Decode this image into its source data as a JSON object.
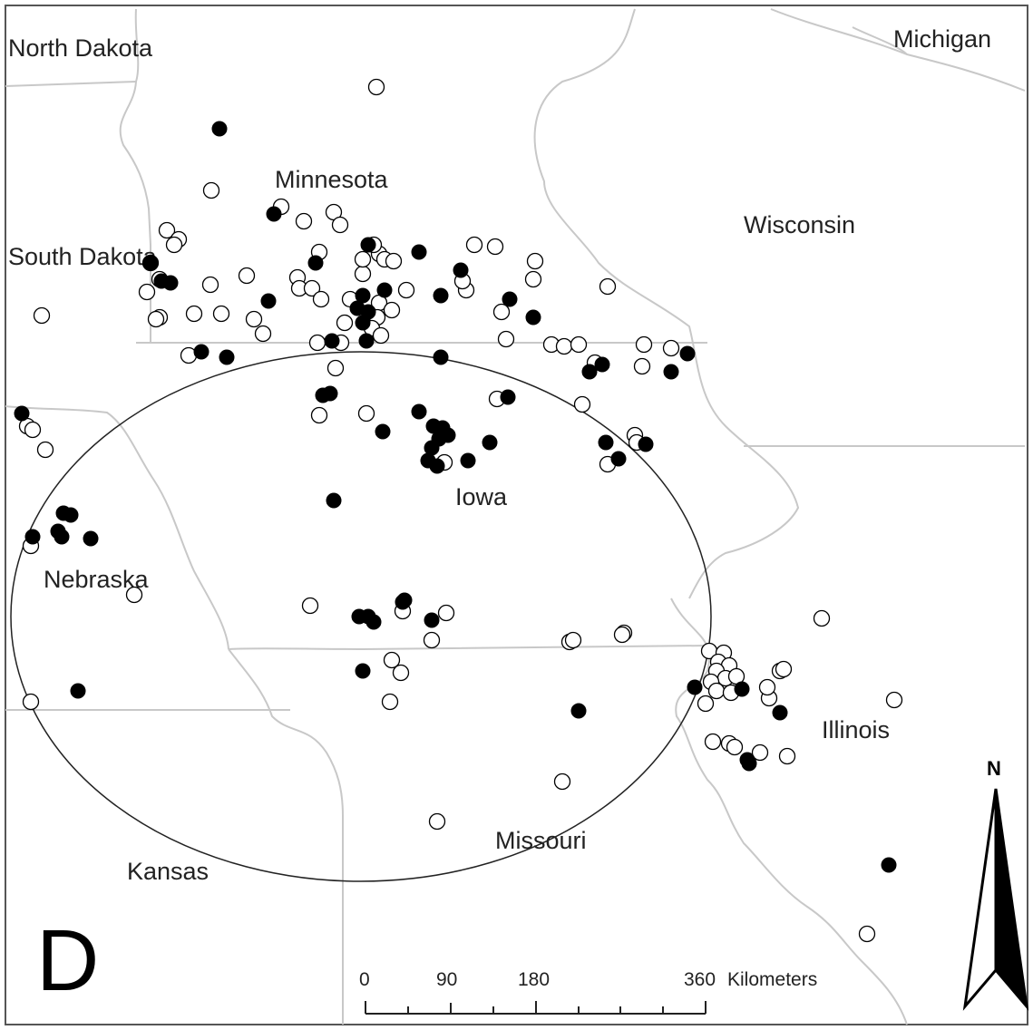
{
  "panel_label": "D",
  "state_labels": {
    "north_dakota": "North Dakota",
    "michigan": "Michigan",
    "minnesota": "Minnesota",
    "wisconsin": "Wisconsin",
    "south_dakota": "South Dakota",
    "iowa": "Iowa",
    "nebraska": "Nebraska",
    "illinois": "Illinois",
    "missouri": "Missouri",
    "kansas": "Kansas"
  },
  "scale_bar": {
    "ticks": [
      "0",
      "90",
      "180",
      "360"
    ],
    "unit": "Kilometers"
  },
  "north_arrow": {
    "label": "N"
  },
  "colors": {
    "filled_site": "#000000",
    "open_site": "#ffffff",
    "border": "#c8c8c8",
    "ellipse": "#222222"
  }
}
